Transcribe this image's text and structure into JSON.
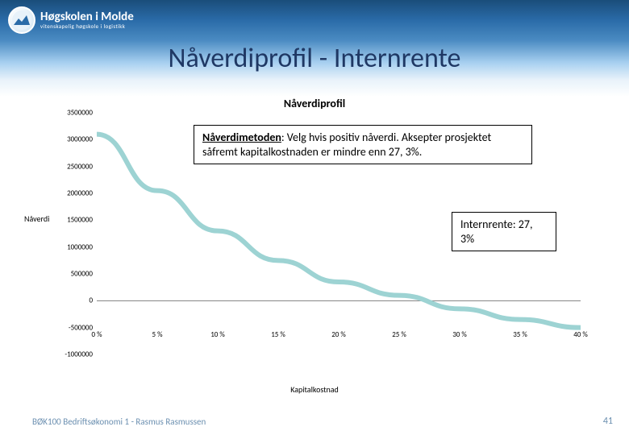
{
  "logo": {
    "main": "Høgskolen i Molde",
    "sub": "vitenskapelig høgskole i logistikk"
  },
  "slide_title": "Nåverdiprofil - Internrente",
  "chart": {
    "type": "line",
    "title": "Nåverdiprofil",
    "xlabel": "Kapitalkostnad",
    "ylabel": "Nåverdi",
    "xlim": [
      0,
      40
    ],
    "ylim": [
      -1000000,
      3500000
    ],
    "y_ticks": [
      -1000000,
      -500000,
      0,
      500000,
      1000000,
      1500000,
      2000000,
      2500000,
      3000000,
      3500000
    ],
    "x_ticks": [
      0,
      5,
      10,
      15,
      20,
      25,
      30,
      35,
      40
    ],
    "x_tick_labels": [
      "0 %",
      "5 %",
      "10 %",
      "15 %",
      "20 %",
      "25 %",
      "30 %",
      "35 %",
      "40 %"
    ],
    "series": {
      "x": [
        0,
        5,
        10,
        15,
        20,
        25,
        30,
        35,
        40
      ],
      "y": [
        3100000,
        2050000,
        1300000,
        750000,
        350000,
        100000,
        -150000,
        -350000,
        -500000
      ],
      "line_color": "#9dd3d3",
      "line_width": 6
    },
    "zero_line_color": "#808080",
    "background_color": "#ffffff"
  },
  "callouts": {
    "method": {
      "html": "<u><b>Nåverdimetoden</b></u>: Velg hvis positiv nåverdi. Aksepter prosjektet såfremt kapitalkostnaden er mindre enn 27, 3%."
    },
    "irr": {
      "html": "Internrente: 27, 3%"
    }
  },
  "footer": "BØK100 Bedriftsøkonomi 1 - Rasmus Rasmussen",
  "slide_number": "41",
  "colors": {
    "title_color": "#1f3864",
    "header_gradient_top": "#1a4d7a",
    "header_gradient_bottom": "#4a8bc2",
    "footer_color": "#6b8fb0"
  }
}
